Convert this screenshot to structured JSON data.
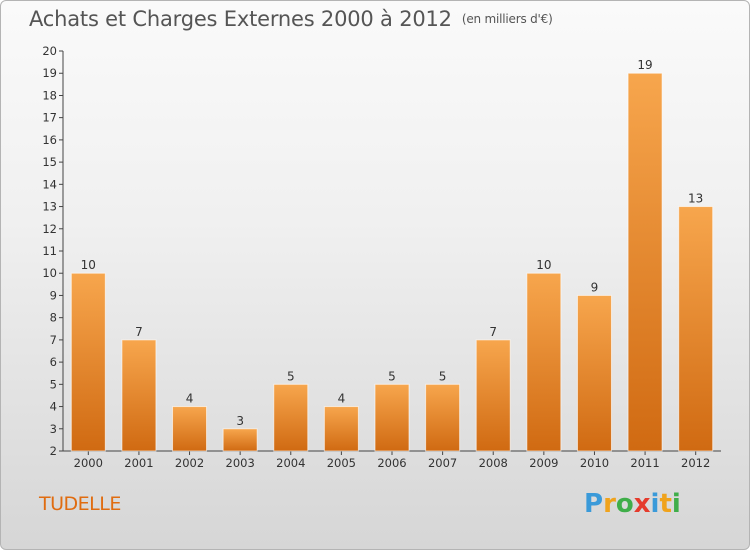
{
  "title": {
    "main": "Achats et Charges Externes 2000 à 2012",
    "unit": "(en milliers d'€)"
  },
  "place_name": "TUDELLE",
  "logo": {
    "letters": [
      "P",
      "r",
      "o",
      "x",
      "i",
      "t",
      "i"
    ],
    "colors": [
      "#3a9ad9",
      "#f0a31c",
      "#3fae49",
      "#e53b2c",
      "#3a9ad9",
      "#f0a31c",
      "#3fae49"
    ]
  },
  "colors": {
    "bar_light": "#f7a64d",
    "bar_dark": "#d06a12",
    "title": "#555555",
    "place": "#e06c10"
  },
  "chart_data": {
    "type": "bar",
    "categories": [
      "2000",
      "2001",
      "2002",
      "2003",
      "2004",
      "2005",
      "2006",
      "2007",
      "2008",
      "2009",
      "2010",
      "2011",
      "2012"
    ],
    "values": [
      10,
      7,
      4,
      3,
      5,
      4,
      5,
      5,
      7,
      10,
      9,
      19,
      13
    ],
    "ylim": [
      2,
      20
    ],
    "yticks": [
      2,
      3,
      4,
      5,
      6,
      7,
      8,
      9,
      10,
      11,
      12,
      13,
      14,
      15,
      16,
      17,
      18,
      19,
      20
    ],
    "title": "Achats et Charges Externes 2000 à 2012",
    "xlabel": "",
    "ylabel": "",
    "grid": false,
    "legend": "none"
  }
}
